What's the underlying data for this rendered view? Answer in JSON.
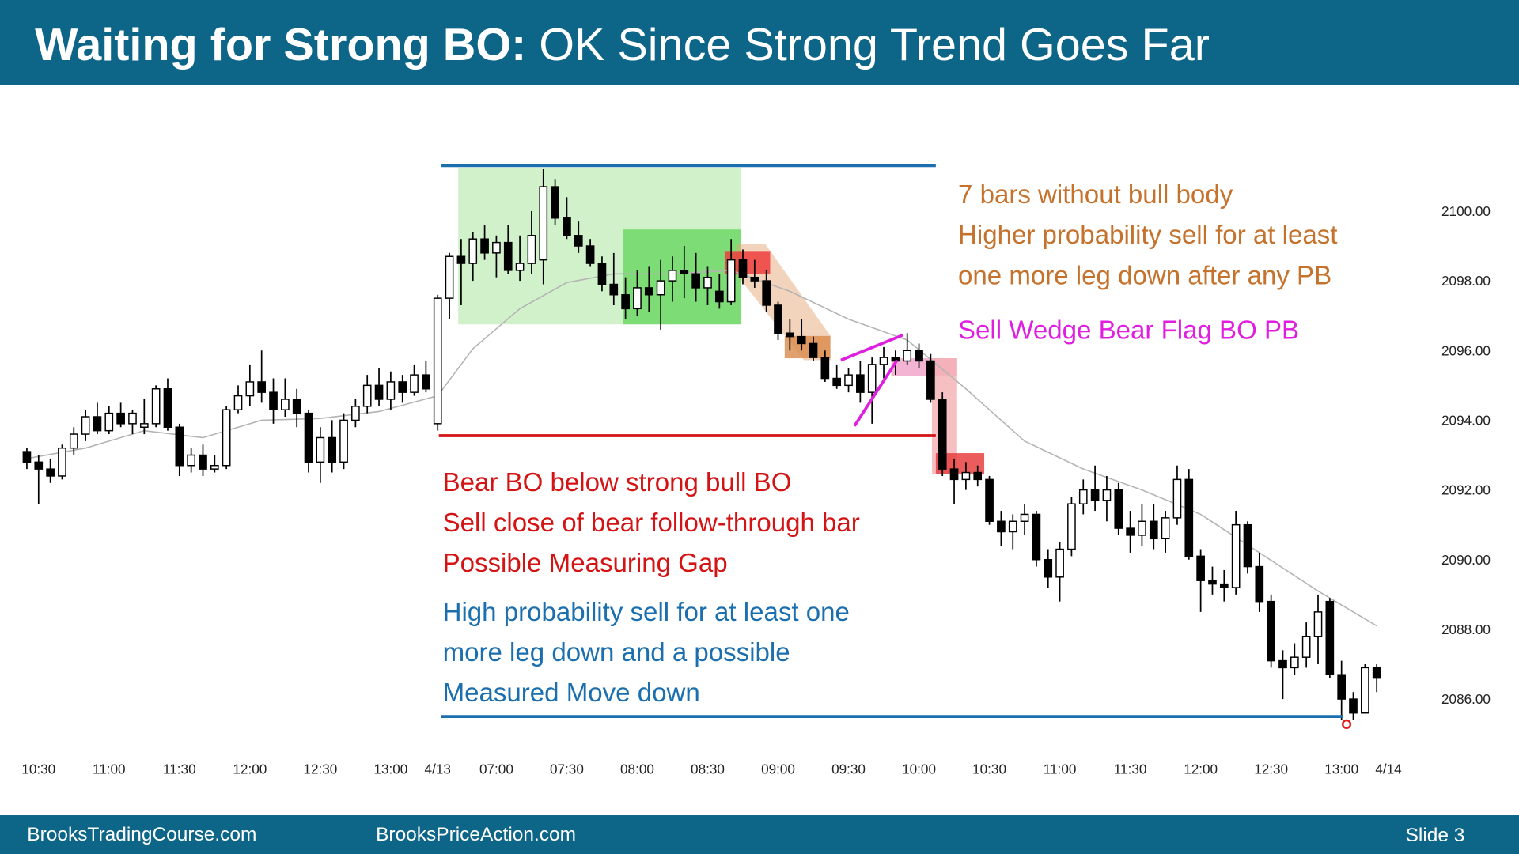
{
  "header": {
    "title_bold": "Waiting for Strong BO:",
    "title_rest": "OK Since Strong Trend Goes Far"
  },
  "footer": {
    "left": "BrooksTradingCourse.com",
    "middle": "BrooksPriceAction.com",
    "slide": "Slide 3"
  },
  "chart_data": {
    "type": "candlestick",
    "up_color": "#ffffff",
    "down_color": "#000000",
    "xlim": [
      -1,
      118
    ],
    "xticks": [
      {
        "value": 1,
        "label": "10:30"
      },
      {
        "value": 7,
        "label": "11:00"
      },
      {
        "value": 13,
        "label": "11:30"
      },
      {
        "value": 19,
        "label": "12:00"
      },
      {
        "value": 25,
        "label": "12:30"
      },
      {
        "value": 31,
        "label": "13:00"
      },
      {
        "value": 35,
        "label": "4/13"
      },
      {
        "value": 40,
        "label": "07:00"
      },
      {
        "value": 46,
        "label": "07:30"
      },
      {
        "value": 52,
        "label": "08:00"
      },
      {
        "value": 58,
        "label": "08:30"
      },
      {
        "value": 64,
        "label": "09:00"
      },
      {
        "value": 70,
        "label": "09:30"
      },
      {
        "value": 76,
        "label": "10:00"
      },
      {
        "value": 82,
        "label": "10:30"
      },
      {
        "value": 88,
        "label": "11:00"
      },
      {
        "value": 94,
        "label": "11:30"
      },
      {
        "value": 100,
        "label": "12:00"
      },
      {
        "value": 106,
        "label": "12:30"
      },
      {
        "value": 112,
        "label": "13:00"
      },
      {
        "value": 116,
        "label": "4/14"
      }
    ],
    "ylim": [
      2084.7,
      2101.9
    ],
    "yticks": [
      {
        "value": 2086,
        "label": "2086.00"
      },
      {
        "value": 2088,
        "label": "2088.00"
      },
      {
        "value": 2090,
        "label": "2090.00"
      },
      {
        "value": 2092,
        "label": "2092.00"
      },
      {
        "value": 2094,
        "label": "2094.00"
      },
      {
        "value": 2096,
        "label": "2096.00"
      },
      {
        "value": 2098,
        "label": "2098.00"
      },
      {
        "value": 2100,
        "label": "2100.00"
      }
    ],
    "ohlc": [
      [
        2093.1,
        2093.2,
        2092.6,
        2092.8
      ],
      [
        2092.8,
        2093.0,
        2091.6,
        2092.6
      ],
      [
        2092.6,
        2092.9,
        2092.2,
        2092.4
      ],
      [
        2092.4,
        2093.3,
        2092.3,
        2093.2
      ],
      [
        2093.2,
        2093.8,
        2093.0,
        2093.6
      ],
      [
        2093.6,
        2094.3,
        2093.4,
        2094.1
      ],
      [
        2094.1,
        2094.5,
        2093.6,
        2093.7
      ],
      [
        2093.7,
        2094.4,
        2093.6,
        2094.2
      ],
      [
        2094.2,
        2094.5,
        2093.8,
        2093.9
      ],
      [
        2093.9,
        2094.3,
        2093.6,
        2094.2
      ],
      [
        2093.8,
        2094.6,
        2093.6,
        2093.9
      ],
      [
        2093.9,
        2095.0,
        2093.8,
        2094.9
      ],
      [
        2094.9,
        2095.2,
        2093.7,
        2093.8
      ],
      [
        2093.8,
        2093.9,
        2092.4,
        2092.7
      ],
      [
        2092.7,
        2093.2,
        2092.5,
        2093.0
      ],
      [
        2093.0,
        2093.3,
        2092.4,
        2092.6
      ],
      [
        2092.6,
        2093.0,
        2092.5,
        2092.7
      ],
      [
        2092.7,
        2094.4,
        2092.6,
        2094.3
      ],
      [
        2094.3,
        2095.0,
        2094.2,
        2094.7
      ],
      [
        2094.7,
        2095.6,
        2094.4,
        2095.1
      ],
      [
        2095.1,
        2096.0,
        2094.5,
        2094.8
      ],
      [
        2094.8,
        2095.2,
        2093.9,
        2094.3
      ],
      [
        2094.3,
        2095.2,
        2094.1,
        2094.6
      ],
      [
        2094.6,
        2094.9,
        2093.8,
        2094.2
      ],
      [
        2094.2,
        2094.3,
        2092.5,
        2092.8
      ],
      [
        2092.8,
        2093.8,
        2092.2,
        2093.5
      ],
      [
        2093.5,
        2094.0,
        2092.5,
        2092.8
      ],
      [
        2092.8,
        2094.2,
        2092.6,
        2094.0
      ],
      [
        2094.0,
        2094.6,
        2093.8,
        2094.4
      ],
      [
        2094.4,
        2095.3,
        2094.2,
        2095.0
      ],
      [
        2095.0,
        2095.5,
        2094.4,
        2094.6
      ],
      [
        2094.6,
        2095.4,
        2094.3,
        2095.1
      ],
      [
        2095.1,
        2095.3,
        2094.5,
        2094.8
      ],
      [
        2094.8,
        2095.6,
        2094.7,
        2095.3
      ],
      [
        2095.3,
        2095.7,
        2094.8,
        2094.9
      ],
      [
        2093.9,
        2097.6,
        2093.7,
        2097.5
      ],
      [
        2097.5,
        2098.8,
        2096.9,
        2098.7
      ],
      [
        2098.7,
        2099.2,
        2097.3,
        2098.5
      ],
      [
        2098.5,
        2099.4,
        2098.0,
        2099.2
      ],
      [
        2099.2,
        2099.6,
        2098.6,
        2098.8
      ],
      [
        2098.8,
        2099.3,
        2098.1,
        2099.1
      ],
      [
        2099.1,
        2099.6,
        2098.2,
        2098.3
      ],
      [
        2098.3,
        2099.3,
        2098.0,
        2098.5
      ],
      [
        2098.5,
        2100.0,
        2098.2,
        2099.3
      ],
      [
        2098.6,
        2101.2,
        2097.9,
        2100.7
      ],
      [
        2100.7,
        2100.9,
        2099.6,
        2099.8
      ],
      [
        2099.8,
        2100.4,
        2099.2,
        2099.3
      ],
      [
        2099.3,
        2099.7,
        2098.8,
        2099.0
      ],
      [
        2099.0,
        2099.2,
        2098.4,
        2098.5
      ],
      [
        2098.5,
        2098.7,
        2097.7,
        2097.9
      ],
      [
        2097.9,
        2098.8,
        2097.3,
        2097.6
      ],
      [
        2097.6,
        2098.1,
        2096.9,
        2097.2
      ],
      [
        2097.2,
        2098.3,
        2097.0,
        2097.8
      ],
      [
        2097.8,
        2098.4,
        2097.1,
        2097.6
      ],
      [
        2097.6,
        2098.6,
        2096.6,
        2098.0
      ],
      [
        2098.0,
        2098.7,
        2097.4,
        2098.3
      ],
      [
        2098.3,
        2099.0,
        2097.5,
        2098.2
      ],
      [
        2098.2,
        2098.8,
        2097.4,
        2097.8
      ],
      [
        2097.8,
        2098.4,
        2097.3,
        2098.1
      ],
      [
        2097.7,
        2098.2,
        2097.2,
        2097.4
      ],
      [
        2097.4,
        2099.2,
        2097.3,
        2098.6
      ],
      [
        2098.6,
        2098.9,
        2097.9,
        2098.1
      ],
      [
        2098.1,
        2098.6,
        2097.8,
        2098.0
      ],
      [
        2098.0,
        2098.3,
        2097.1,
        2097.3
      ],
      [
        2097.3,
        2097.4,
        2096.3,
        2096.5
      ],
      [
        2096.5,
        2096.9,
        2096.0,
        2096.4
      ],
      [
        2096.4,
        2096.9,
        2096.0,
        2096.2
      ],
      [
        2096.2,
        2096.4,
        2095.7,
        2095.8
      ],
      [
        2095.8,
        2096.0,
        2095.1,
        2095.2
      ],
      [
        2095.2,
        2095.6,
        2094.9,
        2095.0
      ],
      [
        2095.0,
        2095.5,
        2094.8,
        2095.3
      ],
      [
        2095.3,
        2095.7,
        2094.5,
        2094.8
      ],
      [
        2094.8,
        2095.8,
        2093.9,
        2095.6
      ],
      [
        2095.6,
        2096.1,
        2095.2,
        2095.8
      ],
      [
        2095.8,
        2096.0,
        2095.3,
        2095.7
      ],
      [
        2095.7,
        2096.5,
        2095.6,
        2096.0
      ],
      [
        2096.0,
        2096.2,
        2095.5,
        2095.7
      ],
      [
        2095.7,
        2095.9,
        2094.5,
        2094.6
      ],
      [
        2094.6,
        2094.8,
        2092.4,
        2092.6
      ],
      [
        2092.6,
        2092.9,
        2091.6,
        2092.3
      ],
      [
        2092.3,
        2092.8,
        2092.0,
        2092.5
      ],
      [
        2092.5,
        2092.7,
        2092.1,
        2092.3
      ],
      [
        2092.3,
        2092.4,
        2091.0,
        2091.1
      ],
      [
        2091.1,
        2091.4,
        2090.4,
        2090.8
      ],
      [
        2090.8,
        2091.3,
        2090.3,
        2091.1
      ],
      [
        2091.1,
        2091.6,
        2090.7,
        2091.3
      ],
      [
        2091.3,
        2091.4,
        2089.8,
        2090.0
      ],
      [
        2090.0,
        2090.3,
        2089.2,
        2089.5
      ],
      [
        2089.5,
        2090.5,
        2088.8,
        2090.3
      ],
      [
        2090.3,
        2091.8,
        2090.1,
        2091.6
      ],
      [
        2091.6,
        2092.3,
        2091.3,
        2092.0
      ],
      [
        2092.0,
        2092.7,
        2091.4,
        2091.7
      ],
      [
        2091.7,
        2092.4,
        2091.1,
        2092.0
      ],
      [
        2092.0,
        2092.2,
        2090.7,
        2090.9
      ],
      [
        2090.9,
        2091.4,
        2090.2,
        2090.7
      ],
      [
        2090.7,
        2091.6,
        2090.4,
        2091.1
      ],
      [
        2091.1,
        2091.6,
        2090.3,
        2090.6
      ],
      [
        2090.6,
        2091.4,
        2090.2,
        2091.2
      ],
      [
        2091.2,
        2092.7,
        2091.0,
        2092.3
      ],
      [
        2092.3,
        2092.6,
        2090.0,
        2090.1
      ],
      [
        2090.1,
        2090.3,
        2088.5,
        2089.4
      ],
      [
        2089.4,
        2089.8,
        2089.0,
        2089.3
      ],
      [
        2089.3,
        2089.7,
        2088.8,
        2089.2
      ],
      [
        2089.2,
        2091.4,
        2089.0,
        2091.0
      ],
      [
        2091.0,
        2091.1,
        2089.6,
        2089.8
      ],
      [
        2089.8,
        2090.2,
        2088.5,
        2088.8
      ],
      [
        2088.8,
        2089.0,
        2086.9,
        2087.1
      ],
      [
        2087.1,
        2087.4,
        2086.0,
        2086.9
      ],
      [
        2086.9,
        2087.6,
        2086.7,
        2087.2
      ],
      [
        2087.2,
        2088.2,
        2086.9,
        2087.8
      ],
      [
        2087.8,
        2089.0,
        2087.0,
        2088.5
      ],
      [
        2088.8,
        2088.9,
        2086.6,
        2086.7
      ],
      [
        2086.7,
        2087.1,
        2085.4,
        2086.0
      ],
      [
        2086.0,
        2086.2,
        2085.4,
        2085.6
      ],
      [
        2085.6,
        2087.0,
        2085.6,
        2086.9
      ],
      [
        2086.9,
        2087.0,
        2086.2,
        2086.6
      ]
    ],
    "ema": {
      "color": "#b4b4b4",
      "x": [
        0,
        5,
        10,
        15,
        20,
        25,
        30,
        35,
        38,
        42,
        46,
        50,
        55,
        60,
        65,
        70,
        75,
        80,
        85,
        90,
        95,
        100,
        105,
        110,
        115
      ],
      "values": [
        2092.9,
        2093.2,
        2093.7,
        2093.5,
        2094.0,
        2094.05,
        2094.25,
        2094.7,
        2096.05,
        2097.2,
        2097.95,
        2098.2,
        2098.2,
        2098.3,
        2097.7,
        2096.9,
        2096.3,
        2094.9,
        2093.4,
        2092.6,
        2092.0,
        2091.3,
        2090.2,
        2089.1,
        2088.1
      ]
    },
    "annotations": [
      {
        "color": "#c4722c",
        "lines": [
          "7 bars without bull body",
          "Higher probability sell for at least",
          "one more leg down after any PB"
        ]
      },
      {
        "color": "#e01ee0",
        "lines": [
          "Sell Wedge Bear Flag BO PB"
        ]
      },
      {
        "color": "#d41414",
        "lines": [
          "Bear BO below strong bull BO",
          "Sell close of bear follow-through bar",
          "Possible Measuring Gap"
        ]
      },
      {
        "color": "#1b6fae",
        "lines": [
          "High probability sell for at least one",
          "more leg down and a possible",
          "Measured Move down"
        ]
      }
    ]
  }
}
